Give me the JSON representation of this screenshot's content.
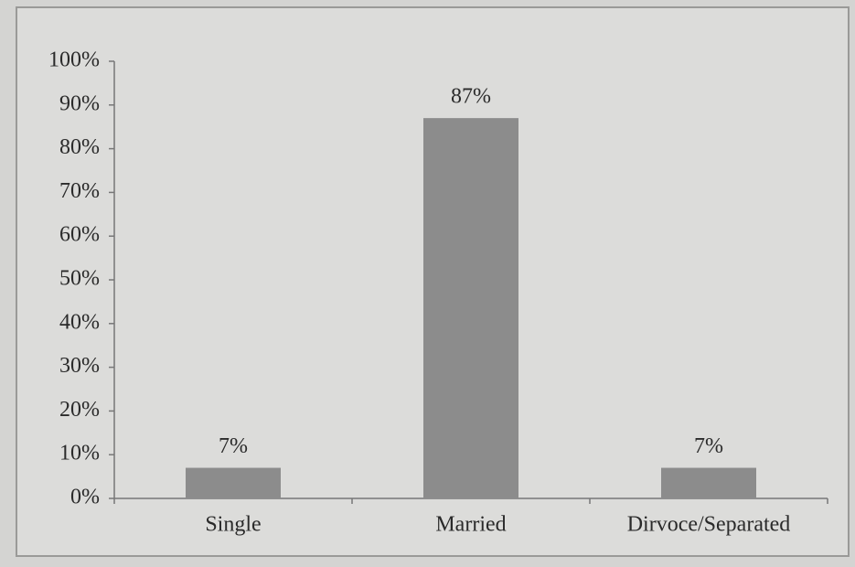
{
  "chart_data": {
    "type": "bar",
    "categories": [
      "Single",
      "Married",
      "Dirvoce/Separated"
    ],
    "values": [
      7,
      87,
      7
    ],
    "value_labels": [
      "7%",
      "87%",
      "7%"
    ],
    "color": "#8c8c8c",
    "ylim": [
      0,
      100
    ],
    "yticks": [
      {
        "value": 0,
        "label": "0%"
      },
      {
        "value": 10,
        "label": "10%"
      },
      {
        "value": 20,
        "label": "20%"
      },
      {
        "value": 30,
        "label": "30%"
      },
      {
        "value": 40,
        "label": "40%"
      },
      {
        "value": 50,
        "label": "50%"
      },
      {
        "value": 60,
        "label": "60%"
      },
      {
        "value": 70,
        "label": "70%"
      },
      {
        "value": 80,
        "label": "80%"
      },
      {
        "value": 90,
        "label": "90%"
      },
      {
        "value": 100,
        "label": "100%"
      }
    ],
    "grid": false
  }
}
